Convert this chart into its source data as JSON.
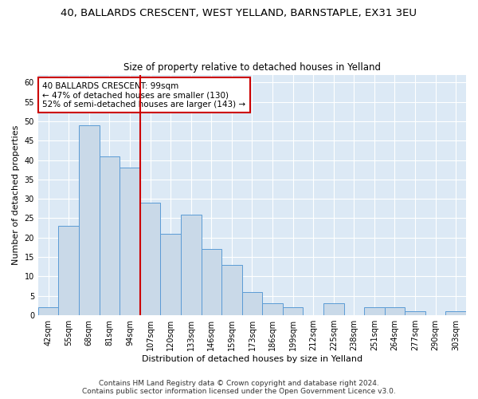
{
  "title": "40, BALLARDS CRESCENT, WEST YELLAND, BARNSTAPLE, EX31 3EU",
  "subtitle": "Size of property relative to detached houses in Yelland",
  "xlabel": "Distribution of detached houses by size in Yelland",
  "ylabel": "Number of detached properties",
  "bar_labels": [
    "42sqm",
    "55sqm",
    "68sqm",
    "81sqm",
    "94sqm",
    "107sqm",
    "120sqm",
    "133sqm",
    "146sqm",
    "159sqm",
    "173sqm",
    "186sqm",
    "199sqm",
    "212sqm",
    "225sqm",
    "238sqm",
    "251sqm",
    "264sqm",
    "277sqm",
    "290sqm",
    "303sqm"
  ],
  "bar_values": [
    2,
    23,
    49,
    41,
    38,
    29,
    21,
    26,
    17,
    13,
    6,
    3,
    2,
    0,
    3,
    0,
    2,
    2,
    1,
    0,
    1
  ],
  "bar_color": "#c9d9e8",
  "bar_edge_color": "#5b9bd5",
  "vline_x": 4.5,
  "vline_color": "#cc0000",
  "annotation_text": "40 BALLARDS CRESCENT: 99sqm\n← 47% of detached houses are smaller (130)\n52% of semi-detached houses are larger (143) →",
  "annotation_box_color": "#ffffff",
  "annotation_box_edge": "#cc0000",
  "ylim": [
    0,
    62
  ],
  "yticks": [
    0,
    5,
    10,
    15,
    20,
    25,
    30,
    35,
    40,
    45,
    50,
    55,
    60
  ],
  "background_color": "#dce9f5",
  "footer_line1": "Contains HM Land Registry data © Crown copyright and database right 2024.",
  "footer_line2": "Contains public sector information licensed under the Open Government Licence v3.0.",
  "title_fontsize": 9.5,
  "subtitle_fontsize": 8.5,
  "xlabel_fontsize": 8,
  "ylabel_fontsize": 8,
  "tick_fontsize": 7,
  "annotation_fontsize": 7.5,
  "footer_fontsize": 6.5
}
